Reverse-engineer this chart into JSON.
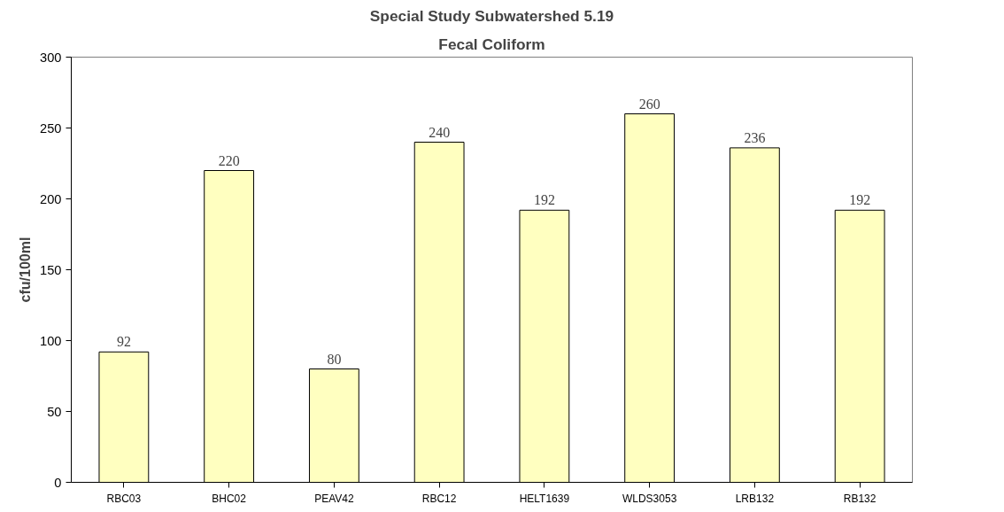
{
  "chart_data": {
    "type": "bar",
    "title": "Special Study Subwatershed 5.19",
    "subtitle": "Fecal Coliform",
    "ylabel": "cfu/100ml",
    "categories": [
      "RBC03",
      "BHC02",
      "PEAV42",
      "RBC12",
      "HELT1639",
      "WLDS3053",
      "LRB132",
      "RB132"
    ],
    "values": [
      92,
      220,
      80,
      240,
      192,
      260,
      236,
      192
    ],
    "color": "#ffffc0",
    "ylim": [
      0,
      300
    ],
    "yticks": [
      0,
      50,
      100,
      150,
      200,
      250,
      300
    ],
    "grid": false,
    "data_labels": true
  }
}
